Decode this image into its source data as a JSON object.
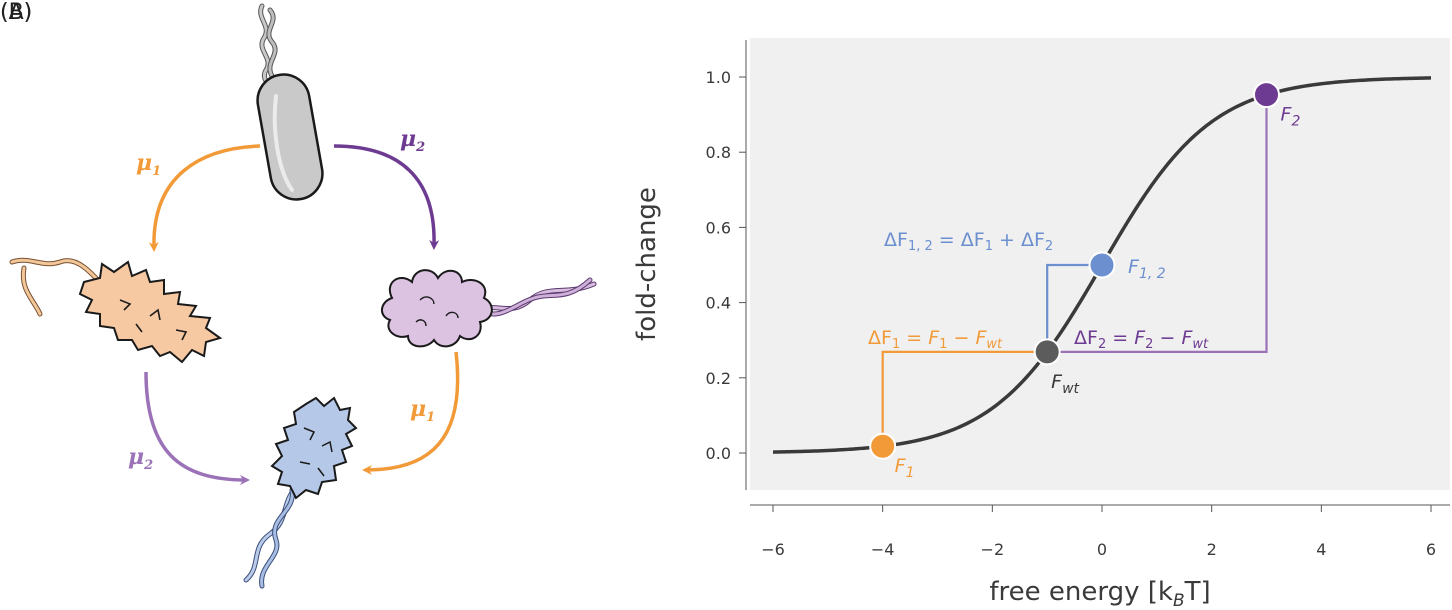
{
  "panels": {
    "a_label": "(A)",
    "b_label": "(B)"
  },
  "colors": {
    "orange": "#f29a38",
    "purple": "#6e3b92",
    "light_purple": "#9b72b8",
    "blue": "#6b8fcf",
    "grey_point": "#5c5c5c",
    "curve": "#3a3a3a",
    "plot_bg": "#f0f0f0"
  },
  "panel_a": {
    "arrows": [
      {
        "label": "μ",
        "sub": "1",
        "color": "orange"
      },
      {
        "label": "μ",
        "sub": "2",
        "color": "purple"
      },
      {
        "label": "μ",
        "sub": "2",
        "color": "light_purple"
      },
      {
        "label": "μ",
        "sub": "1",
        "color": "orange"
      }
    ],
    "cells": [
      "wild-type cell",
      "mutant 1 cell",
      "mutant 2 cell",
      "double mutant cell"
    ]
  },
  "chart_data": {
    "type": "line",
    "title": "",
    "xlabel": "free energy [k",
    "xlabel_sub": "B",
    "xlabel_tail": "T]",
    "ylabel": "fold-change",
    "xlim": [
      -6.3,
      6.3
    ],
    "ylim": [
      -0.1,
      1.1
    ],
    "xticks": [
      -6,
      -4,
      -2,
      0,
      2,
      4,
      6
    ],
    "xtick_labels": [
      "−6",
      "−4",
      "−2",
      "0",
      "2",
      "4",
      "6"
    ],
    "yticks": [
      0.0,
      0.2,
      0.4,
      0.6,
      0.8,
      1.0
    ],
    "ytick_labels": [
      "0.0",
      "0.2",
      "0.4",
      "0.6",
      "0.8",
      "1.0"
    ],
    "curve": {
      "function": "fold-change = 1 / (1 + exp(-F))",
      "x_range": [
        -6,
        6
      ]
    },
    "points": [
      {
        "id": "F1",
        "x": -4,
        "y": 0.018,
        "label": "F",
        "sub": "1",
        "color": "orange"
      },
      {
        "id": "Fwt",
        "x": -1,
        "y": 0.269,
        "label": "F",
        "sub": "wt",
        "color": "grey_point"
      },
      {
        "id": "F12",
        "x": 0,
        "y": 0.5,
        "label": "F",
        "sub": "1, 2",
        "color": "blue"
      },
      {
        "id": "F2",
        "x": 3,
        "y": 0.953,
        "label": "F",
        "sub": "2",
        "color": "purple"
      }
    ],
    "annotations": {
      "dF1": {
        "lhs": "ΔF",
        "lhs_sub": "1",
        "eq": " = ",
        "a": "F",
        "a_sub": "1",
        "op": " − ",
        "b": "F",
        "b_sub": "wt"
      },
      "dF2": {
        "lhs": "ΔF",
        "lhs_sub": "2",
        "eq": " = ",
        "a": "F",
        "a_sub": "2",
        "op": " − ",
        "b": "F",
        "b_sub": "wt"
      },
      "dF12": {
        "lhs": "ΔF",
        "lhs_sub": "1, 2",
        "eq": " = ",
        "a": "ΔF",
        "a_sub": "1",
        "op": " + ",
        "b": "ΔF",
        "b_sub": "2"
      }
    }
  }
}
